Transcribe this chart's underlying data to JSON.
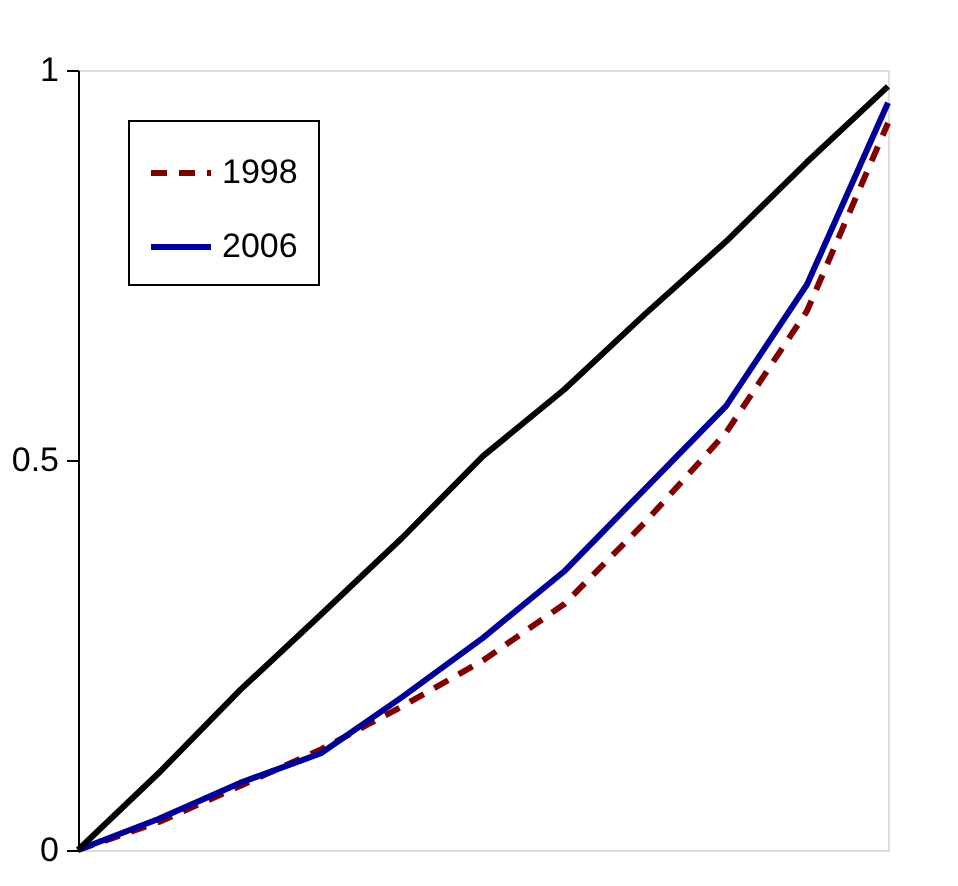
{
  "chart_data": {
    "type": "line",
    "categories": [
      null,
      null,
      null,
      null,
      null,
      null,
      null,
      null,
      null,
      null,
      null
    ],
    "series": [
      {
        "name": "1998",
        "color": "#800000",
        "line_style": "dashed",
        "values": [
          0,
          0.036,
          0.082,
          0.129,
          0.184,
          0.243,
          0.315,
          0.42,
          0.535,
          0.691,
          0.932
        ]
      },
      {
        "name": "2006",
        "color": "#000099",
        "line_style": "solid",
        "values": [
          0,
          0.04,
          0.086,
          0.124,
          0.196,
          0.272,
          0.357,
          0.463,
          0.569,
          0.725,
          0.958
        ]
      },
      {
        "color": "#000000",
        "line_style": "solid",
        "values": [
          0,
          0.099,
          0.205,
          0.302,
          0.4,
          0.505,
          0.59,
          0.687,
          0.78,
          0.882,
          0.979
        ]
      }
    ],
    "ylim": [
      0,
      1
    ],
    "yticks": [
      0,
      0.5,
      1
    ],
    "grid": false,
    "legend": "top left",
    "tick_labels": "y",
    "marker": "none"
  }
}
